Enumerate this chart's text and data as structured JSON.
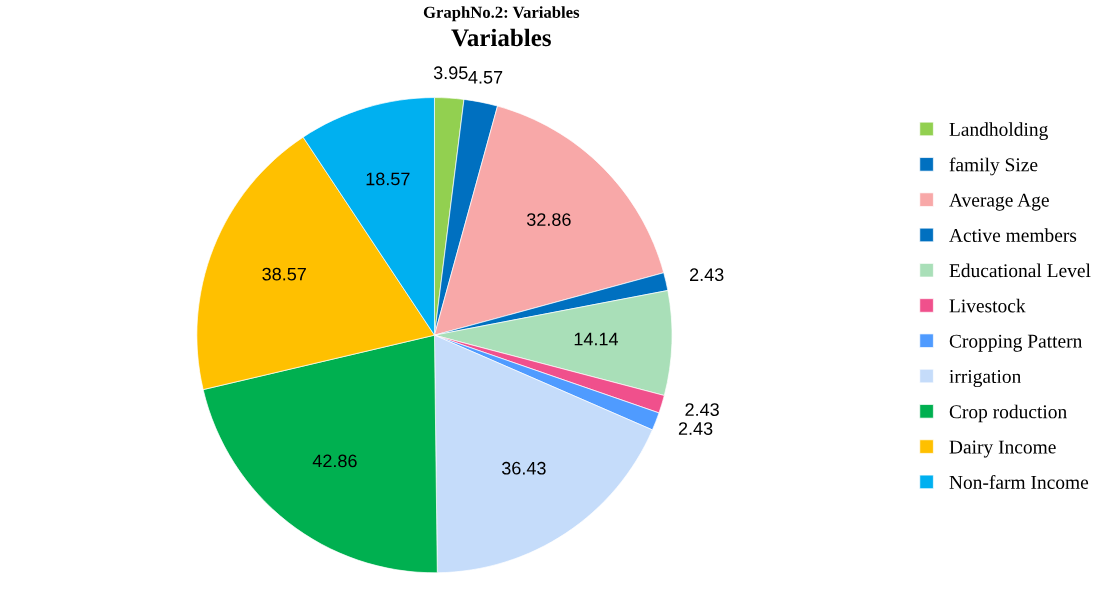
{
  "chart_data": {
    "type": "pie",
    "title": "Variables",
    "categories": [
      "Landholding",
      "family Size",
      "Average Age",
      "Active members",
      "Educational Level",
      "Livestock",
      "Cropping Pattern",
      "irrigation",
      "Crop roduction",
      "Dairy Income",
      "Non-farm Income"
    ],
    "values": [
      3.95,
      4.57,
      32.86,
      2.43,
      14.14,
      2.43,
      2.43,
      36.43,
      42.86,
      38.57,
      18.57
    ],
    "colors": [
      "#92d050",
      "#0070c0",
      "#f8a8a8",
      "#0070c0",
      "#a9dfb8",
      "#f0508c",
      "#4f9bff",
      "#c5dcfa",
      "#00b050",
      "#ffc000",
      "#00b0f0"
    ],
    "data_labels": true,
    "legend": "right",
    "annotations": [
      "GraphNo.2: Variables"
    ]
  }
}
